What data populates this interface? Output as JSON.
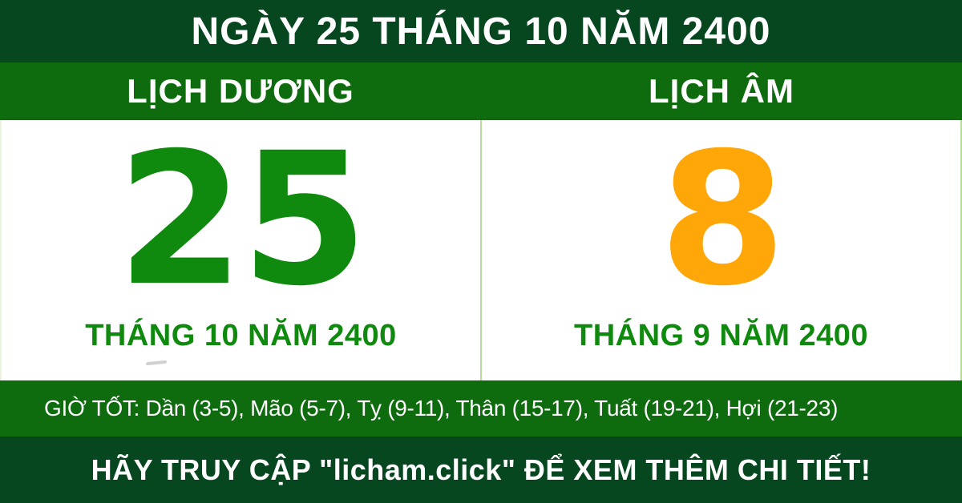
{
  "banner": {
    "title": "NGÀY 25 THÁNG 10 NĂM 2400"
  },
  "solar": {
    "label": "LỊCH DƯƠNG",
    "day": "25",
    "month_year": "THÁNG 10 NĂM 2400"
  },
  "lunar": {
    "label": "LỊCH ÂM",
    "day": "8",
    "month_year": "THÁNG 9 NĂM 2400"
  },
  "good_hours": {
    "text": "GIỜ TỐT: Dần (3-5), Mão (5-7), Tỵ (9-11), Thân (15-17), Tuất (19-21), Hợi (21-23)"
  },
  "footer": {
    "text": "HÃY TRUY CẬP \"licham.click\" ĐỂ XEM THÊM CHI TIẾT!"
  },
  "colors": {
    "dark_green": "#06471f",
    "medium_green": "#0e6b0e",
    "accent_green": "#0f8a0f",
    "accent_orange": "#ffa608",
    "divider_green": "#b7dc9b"
  }
}
